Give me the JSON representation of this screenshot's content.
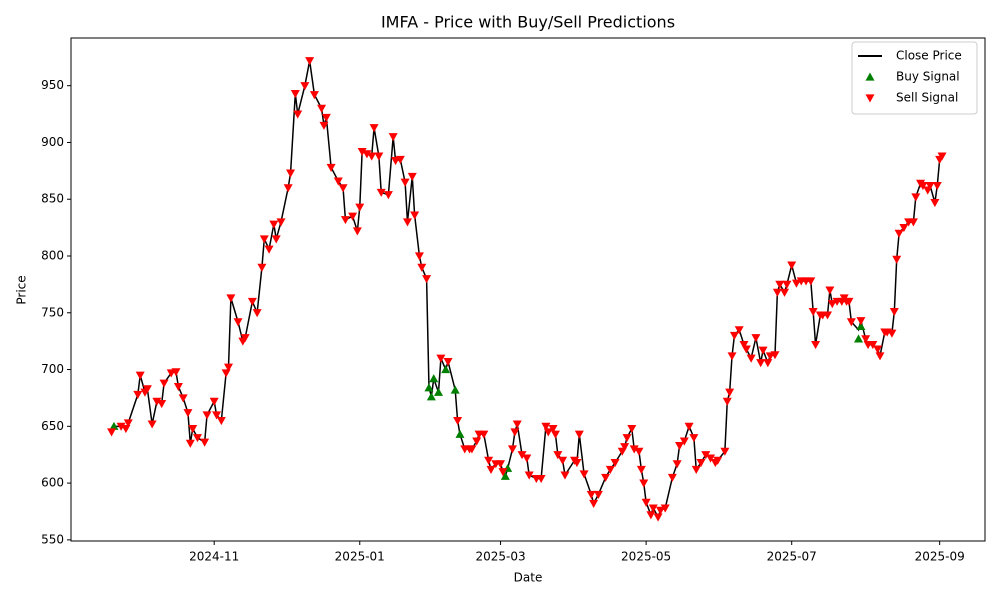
{
  "chart_data": {
    "type": "line",
    "title": "IMFA - Price with Buy/Sell Predictions",
    "x_label": "Date",
    "y_label": "Price",
    "xlim": [
      -60,
      323
    ],
    "xticks": [
      {
        "value": 0,
        "label": "2024-11"
      },
      {
        "value": 61,
        "label": "2025-01"
      },
      {
        "value": 120,
        "label": "2025-03"
      },
      {
        "value": 181,
        "label": "2025-05"
      },
      {
        "value": 242,
        "label": "2025-07"
      },
      {
        "value": 304,
        "label": "2025-09"
      }
    ],
    "ylim": [
      549,
      992
    ],
    "yticks": [
      550,
      600,
      650,
      700,
      750,
      800,
      850,
      900,
      950
    ],
    "grid": false,
    "legend": "upper right",
    "series": [
      {
        "name": "Close Price",
        "type": "line",
        "color": "#000000",
        "x": [
          -43,
          -42,
          -39,
          -37,
          -36,
          -32,
          -31,
          -29,
          -28,
          -26,
          -24,
          -22,
          -21,
          -18,
          -16,
          -15,
          -13,
          -11,
          -10,
          -9,
          -7,
          -4,
          -3,
          0,
          1,
          3,
          5,
          6,
          7,
          10,
          12,
          13,
          16,
          18,
          20,
          21,
          23,
          25,
          26,
          28,
          31,
          32,
          34,
          35,
          38,
          40,
          42,
          45,
          46,
          47,
          49,
          52,
          54,
          55,
          58,
          60,
          61,
          62,
          64,
          66,
          67,
          69,
          70,
          73,
          75,
          76,
          78,
          80,
          81,
          83,
          84,
          86,
          87,
          89,
          90,
          91,
          92,
          94,
          95,
          97,
          98,
          101,
          102,
          103,
          105,
          107,
          108,
          110,
          111,
          113,
          115,
          116,
          118,
          120,
          121,
          122,
          123,
          125,
          126,
          127,
          129,
          131,
          132,
          135,
          137,
          139,
          140,
          142,
          143,
          144,
          146,
          147,
          151,
          152,
          153,
          155,
          158,
          159,
          161,
          164,
          166,
          168,
          171,
          172,
          173,
          175,
          176,
          178,
          179,
          180,
          181,
          183,
          184,
          186,
          187,
          189,
          192,
          194,
          195,
          197,
          199,
          201,
          202,
          204,
          206,
          208,
          210,
          211,
          214,
          215,
          216,
          217,
          218,
          220,
          222,
          223,
          225,
          227,
          229,
          230,
          232,
          233,
          235,
          236,
          237,
          239,
          240,
          242,
          244,
          246,
          248,
          250,
          251,
          252,
          254,
          255,
          257,
          258,
          259,
          261,
          263,
          264,
          265,
          266,
          267,
          270,
          271,
          273,
          274,
          276,
          278,
          279,
          281,
          282,
          284,
          285,
          286,
          287,
          289,
          291,
          293,
          294,
          296,
          297,
          299,
          300,
          302,
          303,
          304,
          305
        ],
        "values": [
          645,
          650,
          650,
          648,
          653,
          678,
          695,
          680,
          683,
          652,
          672,
          670,
          688,
          697,
          698,
          685,
          675,
          662,
          635,
          648,
          640,
          636,
          660,
          672,
          660,
          655,
          697,
          702,
          763,
          742,
          725,
          728,
          760,
          750,
          790,
          815,
          806,
          828,
          815,
          830,
          860,
          873,
          943,
          925,
          950,
          972,
          942,
          930,
          915,
          922,
          878,
          866,
          860,
          832,
          835,
          822,
          843,
          892,
          890,
          888,
          913,
          888,
          856,
          854,
          905,
          884,
          885,
          865,
          830,
          870,
          836,
          800,
          790,
          780,
          685,
          676,
          692,
          680,
          710,
          700,
          707,
          682,
          655,
          643,
          630,
          630,
          630,
          637,
          643,
          643,
          620,
          612,
          617,
          617,
          610,
          606,
          613,
          630,
          645,
          652,
          625,
          622,
          607,
          604,
          604,
          650,
          645,
          648,
          643,
          625,
          620,
          607,
          620,
          618,
          643,
          608,
          590,
          582,
          590,
          605,
          612,
          618,
          628,
          632,
          640,
          648,
          630,
          628,
          612,
          600,
          583,
          572,
          578,
          570,
          576,
          578,
          605,
          617,
          633,
          637,
          650,
          640,
          612,
          618,
          625,
          622,
          618,
          620,
          628,
          672,
          680,
          712,
          730,
          735,
          722,
          718,
          710,
          728,
          706,
          717,
          706,
          712,
          713,
          768,
          775,
          768,
          775,
          792,
          776,
          778,
          778,
          778,
          751,
          722,
          748,
          748,
          748,
          770,
          758,
          760,
          760,
          763,
          760,
          760,
          742,
          735,
          743,
          727,
          722,
          722,
          718,
          712,
          733,
          733,
          732,
          751,
          797,
          820,
          825,
          830,
          830,
          852,
          864,
          862,
          858,
          862,
          847,
          862,
          885,
          888
        ]
      },
      {
        "name": "Buy Signal",
        "type": "scatter",
        "marker": "triangle-up",
        "color": "#008000",
        "x": [
          -42,
          90,
          91,
          92,
          94,
          97,
          101,
          103,
          122,
          123,
          270,
          271
        ],
        "values": [
          650,
          684,
          676,
          692,
          680,
          700,
          682,
          643,
          606,
          613,
          727,
          738
        ]
      },
      {
        "name": "Sell Signal",
        "type": "scatter",
        "marker": "triangle-down",
        "color": "#ff0000",
        "x": [
          -43,
          -39,
          -37,
          -36,
          -32,
          -31,
          -29,
          -28,
          -26,
          -24,
          -22,
          -21,
          -18,
          -16,
          -15,
          -13,
          -11,
          -10,
          -9,
          -7,
          -4,
          -3,
          0,
          1,
          3,
          5,
          6,
          7,
          10,
          12,
          13,
          16,
          18,
          20,
          21,
          23,
          25,
          26,
          28,
          31,
          32,
          34,
          35,
          38,
          40,
          42,
          45,
          46,
          47,
          49,
          52,
          54,
          55,
          58,
          60,
          61,
          62,
          64,
          66,
          67,
          69,
          70,
          73,
          75,
          76,
          78,
          80,
          81,
          83,
          84,
          86,
          87,
          89,
          95,
          98,
          102,
          105,
          107,
          108,
          110,
          111,
          113,
          115,
          116,
          118,
          120,
          121,
          125,
          126,
          127,
          129,
          131,
          132,
          135,
          137,
          139,
          140,
          142,
          143,
          144,
          146,
          147,
          151,
          152,
          153,
          155,
          158,
          159,
          161,
          164,
          166,
          168,
          171,
          172,
          173,
          175,
          176,
          178,
          179,
          180,
          181,
          183,
          184,
          186,
          187,
          189,
          192,
          194,
          195,
          197,
          199,
          201,
          202,
          204,
          206,
          208,
          210,
          211,
          214,
          215,
          216,
          217,
          218,
          220,
          222,
          223,
          225,
          227,
          229,
          230,
          232,
          233,
          235,
          236,
          237,
          239,
          240,
          242,
          244,
          246,
          248,
          250,
          251,
          252,
          254,
          255,
          257,
          258,
          259,
          261,
          263,
          264,
          265,
          266,
          267,
          271,
          273,
          274,
          276,
          278,
          279,
          281,
          282,
          284,
          285,
          286,
          287,
          289,
          291,
          293,
          294,
          296,
          297,
          299,
          300,
          302,
          303,
          304,
          305
        ],
        "values": [
          645,
          650,
          648,
          653,
          678,
          695,
          680,
          683,
          652,
          672,
          670,
          688,
          697,
          698,
          685,
          675,
          662,
          635,
          648,
          640,
          636,
          660,
          672,
          660,
          655,
          697,
          702,
          763,
          742,
          725,
          728,
          760,
          750,
          790,
          815,
          806,
          828,
          815,
          830,
          860,
          873,
          943,
          925,
          950,
          972,
          942,
          930,
          915,
          922,
          878,
          866,
          860,
          832,
          835,
          822,
          843,
          892,
          890,
          888,
          913,
          888,
          856,
          854,
          905,
          884,
          885,
          865,
          830,
          870,
          836,
          800,
          790,
          780,
          710,
          707,
          655,
          630,
          630,
          630,
          637,
          643,
          643,
          620,
          612,
          617,
          617,
          610,
          630,
          645,
          652,
          625,
          622,
          607,
          604,
          604,
          650,
          645,
          648,
          643,
          625,
          620,
          607,
          620,
          618,
          643,
          608,
          590,
          582,
          590,
          605,
          612,
          618,
          628,
          632,
          640,
          648,
          630,
          628,
          612,
          600,
          583,
          572,
          578,
          570,
          576,
          578,
          605,
          617,
          633,
          637,
          650,
          640,
          612,
          618,
          625,
          622,
          618,
          620,
          628,
          672,
          680,
          712,
          730,
          735,
          722,
          718,
          710,
          728,
          706,
          717,
          706,
          712,
          713,
          768,
          775,
          768,
          775,
          792,
          776,
          778,
          778,
          778,
          751,
          722,
          748,
          748,
          748,
          770,
          758,
          760,
          760,
          763,
          760,
          760,
          742,
          743,
          727,
          722,
          722,
          718,
          712,
          733,
          733,
          732,
          751,
          797,
          820,
          825,
          830,
          830,
          852,
          864,
          862,
          858,
          862,
          847,
          862,
          885,
          888
        ]
      }
    ]
  }
}
